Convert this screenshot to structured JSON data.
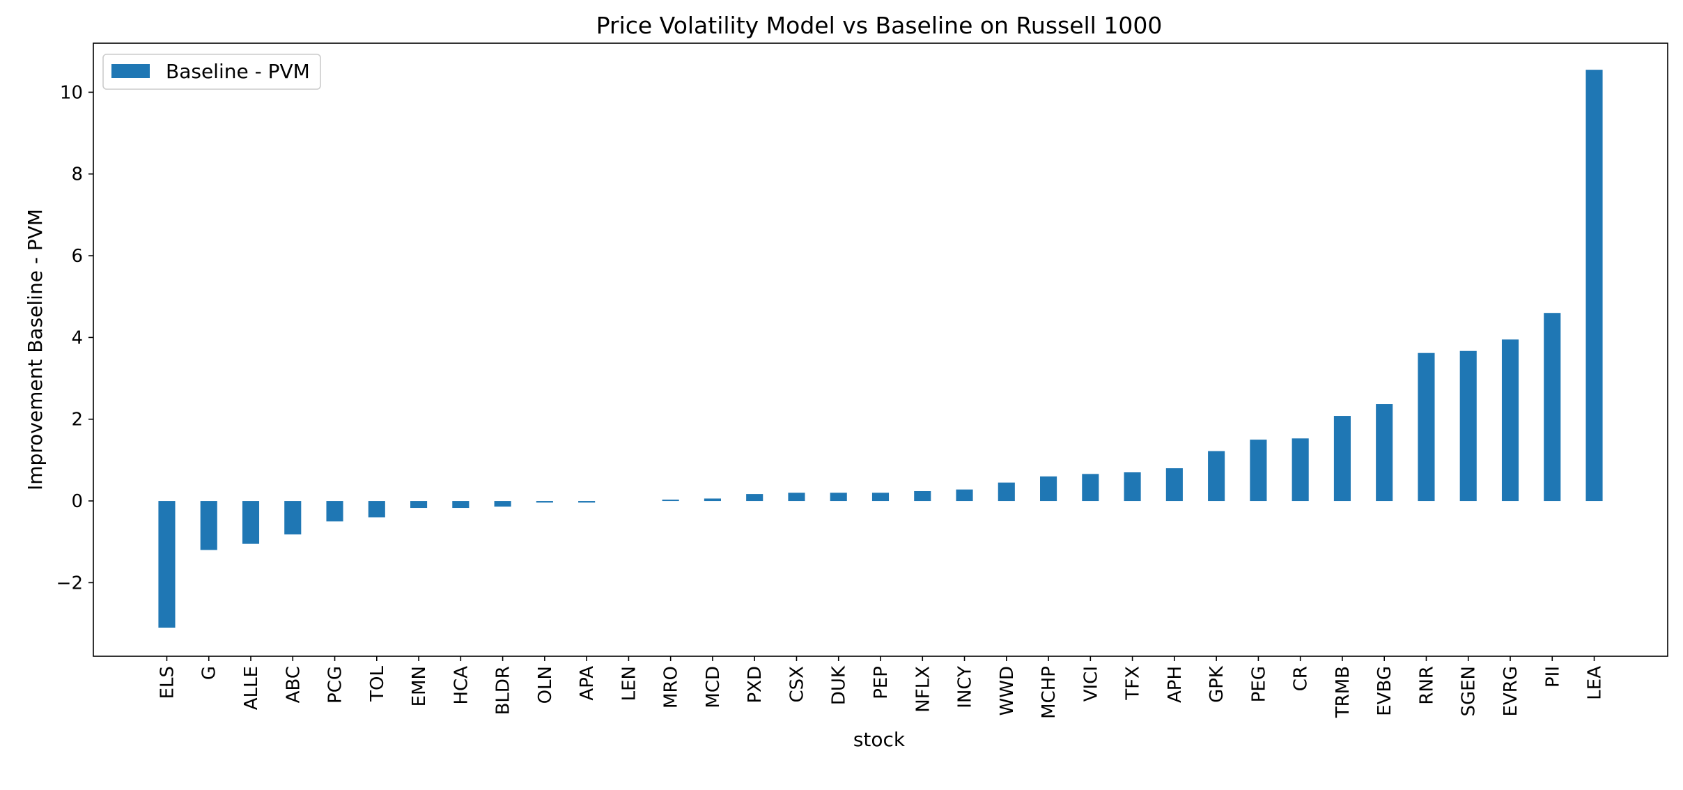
{
  "chart_data": {
    "type": "bar",
    "title": "Price Volatility Model vs Baseline on Russell 1000",
    "xlabel": "stock",
    "ylabel": "Improvement Baseline - PVM",
    "legend": {
      "label": "Baseline - PVM",
      "placement": "top-left"
    },
    "ylim": [
      -3.8,
      11.2
    ],
    "yticks": [
      -2,
      0,
      2,
      4,
      6,
      8,
      10
    ],
    "ytick_labels": [
      "−2",
      "0",
      "2",
      "4",
      "6",
      "8",
      "10"
    ],
    "grid": false,
    "bar_color": "#1f77b4",
    "categories": [
      "ELS",
      "G",
      "ALLE",
      "ABC",
      "PCG",
      "TOL",
      "EMN",
      "HCA",
      "BLDR",
      "OLN",
      "APA",
      "LEN",
      "MRO",
      "MCD",
      "PXD",
      "CSX",
      "DUK",
      "PEP",
      "NFLX",
      "INCY",
      "WWD",
      "MCHP",
      "VICI",
      "TFX",
      "APH",
      "GPK",
      "PEG",
      "CR",
      "TRMB",
      "EVBG",
      "RNR",
      "SGEN",
      "EVRG",
      "PII",
      "LEA"
    ],
    "series": [
      {
        "name": "Baseline - PVM",
        "values": [
          -3.1,
          -1.2,
          -1.05,
          -0.82,
          -0.5,
          -0.4,
          -0.17,
          -0.17,
          -0.14,
          -0.04,
          -0.04,
          0.0,
          0.03,
          0.06,
          0.17,
          0.2,
          0.2,
          0.2,
          0.24,
          0.28,
          0.45,
          0.6,
          0.66,
          0.7,
          0.8,
          1.22,
          1.5,
          1.53,
          2.08,
          2.37,
          3.62,
          3.67,
          3.95,
          4.6,
          10.55
        ]
      }
    ]
  }
}
